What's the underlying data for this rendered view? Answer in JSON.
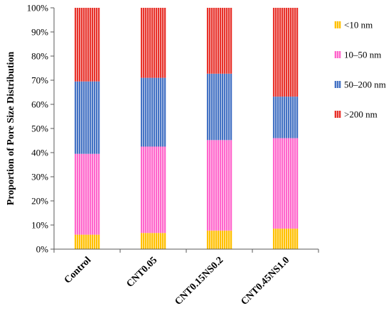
{
  "chart_data": {
    "type": "bar",
    "stacked": true,
    "title": "",
    "xlabel": "",
    "ylabel": "Proportion of Pore Size Distribution",
    "ylim": [
      0,
      100
    ],
    "y_ticks": [
      "0%",
      "10%",
      "20%",
      "30%",
      "40%",
      "50%",
      "60%",
      "70%",
      "80%",
      "90%",
      "100%"
    ],
    "categories": [
      "Control",
      "CNT0.05",
      "CNT0.15NS0.2",
      "CNT0.45NS1.0"
    ],
    "series": [
      {
        "name": "<10 nm",
        "color": "#ffc000",
        "values": [
          6,
          6.7,
          7.7,
          8.5
        ]
      },
      {
        "name": "10–50 nm",
        "color": "#ff66cc",
        "values": [
          33.5,
          35.8,
          37.5,
          37.5
        ]
      },
      {
        "name": "50–200 nm",
        "color": "#4472c4",
        "values": [
          30,
          28.5,
          27.5,
          17.2
        ]
      },
      {
        "name": ">200 nm",
        "color": "#e8322b",
        "values": [
          30.5,
          29,
          27.3,
          36.8
        ]
      }
    ],
    "legend_position": "right",
    "grid": false
  }
}
